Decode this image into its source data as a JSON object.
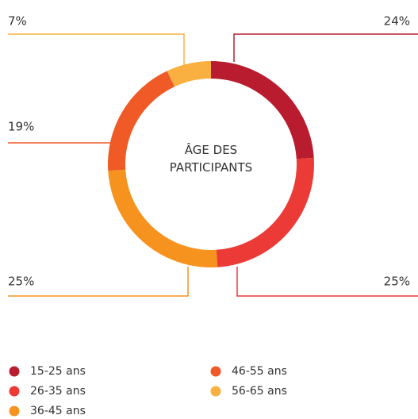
{
  "chart_data": {
    "type": "donut",
    "title": "ÂGE DES PARTICIPANTS",
    "categories": [
      "15-25 ans",
      "26-35 ans",
      "36-45 ans",
      "46-55 ans",
      "56-65 ans"
    ],
    "values": [
      24,
      25,
      25,
      19,
      7
    ],
    "value_labels": [
      "24%",
      "25%",
      "25%",
      "19%",
      "7%"
    ],
    "colors": [
      "#b81c2e",
      "#ec3a37",
      "#f6931f",
      "#ef5a26",
      "#f9b041"
    ]
  }
}
